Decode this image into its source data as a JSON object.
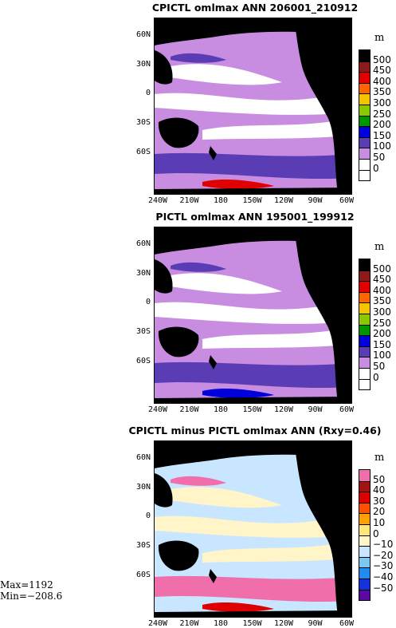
{
  "stats": {
    "max": "Max=1192",
    "min": "Min=−208.6"
  },
  "chart_data": [
    {
      "type": "heatmap",
      "title": "CPICTL omlmax ANN 206001_210912",
      "unit": "m",
      "x_ticks": [
        "240W",
        "210W",
        "180",
        "150W",
        "120W",
        "90W",
        "60W"
      ],
      "y_ticks": [
        "60N",
        "30N",
        "0",
        "30S",
        "60S"
      ],
      "colorbar": {
        "levels": [
          "500",
          "450",
          "400",
          "350",
          "300",
          "250",
          "200",
          "150",
          "100",
          "50",
          "0"
        ],
        "colors": [
          "#000000",
          "#8b1a1a",
          "#e00000",
          "#ff6400",
          "#f5c400",
          "#8cc800",
          "#009600",
          "#0000dc",
          "#5a3cb4",
          "#c88ce1",
          "#ffffff",
          "#ffffff"
        ]
      },
      "fill_colors": {
        "land": "#000000",
        "low": "#ffffff",
        "mid": "#c88ce1",
        "high": "#5a3cb4",
        "peak": "#e00000"
      }
    },
    {
      "type": "heatmap",
      "title": "PICTL omlmax ANN 195001_199912",
      "unit": "m",
      "x_ticks": [
        "240W",
        "210W",
        "180",
        "150W",
        "120W",
        "90W",
        "60W"
      ],
      "y_ticks": [
        "60N",
        "30N",
        "0",
        "30S",
        "60S"
      ],
      "colorbar": {
        "levels": [
          "500",
          "450",
          "400",
          "350",
          "300",
          "250",
          "200",
          "150",
          "100",
          "50",
          "0"
        ],
        "colors": [
          "#000000",
          "#8b1a1a",
          "#e00000",
          "#ff6400",
          "#f5c400",
          "#8cc800",
          "#009600",
          "#0000dc",
          "#5a3cb4",
          "#c88ce1",
          "#ffffff",
          "#ffffff"
        ]
      },
      "fill_colors": {
        "land": "#000000",
        "low": "#ffffff",
        "mid": "#c88ce1",
        "high": "#5a3cb4",
        "peak": "#0000dc"
      }
    },
    {
      "type": "heatmap",
      "title": "CPICTL minus PICTL omlmax ANN (Rxy=0.46)",
      "unit": "m",
      "x_ticks": [
        "240W",
        "210W",
        "180",
        "150W",
        "120W",
        "90W",
        "60W"
      ],
      "y_ticks": [
        "60N",
        "30N",
        "0",
        "30S",
        "60S"
      ],
      "colorbar": {
        "levels": [
          "50",
          "40",
          "30",
          "20",
          "10",
          "0",
          "−10",
          "−20",
          "−30",
          "−40",
          "−50"
        ],
        "colors": [
          "#f06eaa",
          "#a01414",
          "#dc0000",
          "#ff5000",
          "#ffa000",
          "#ffe678",
          "#fff5c8",
          "#c8e6ff",
          "#78c8f0",
          "#1e8cf0",
          "#1432dc",
          "#5a0aa0"
        ]
      },
      "fill_colors": {
        "land": "#000000",
        "low": "#fff5c8",
        "mid": "#c8e6ff",
        "high": "#f06eaa",
        "peak": "#dc0000"
      }
    }
  ]
}
